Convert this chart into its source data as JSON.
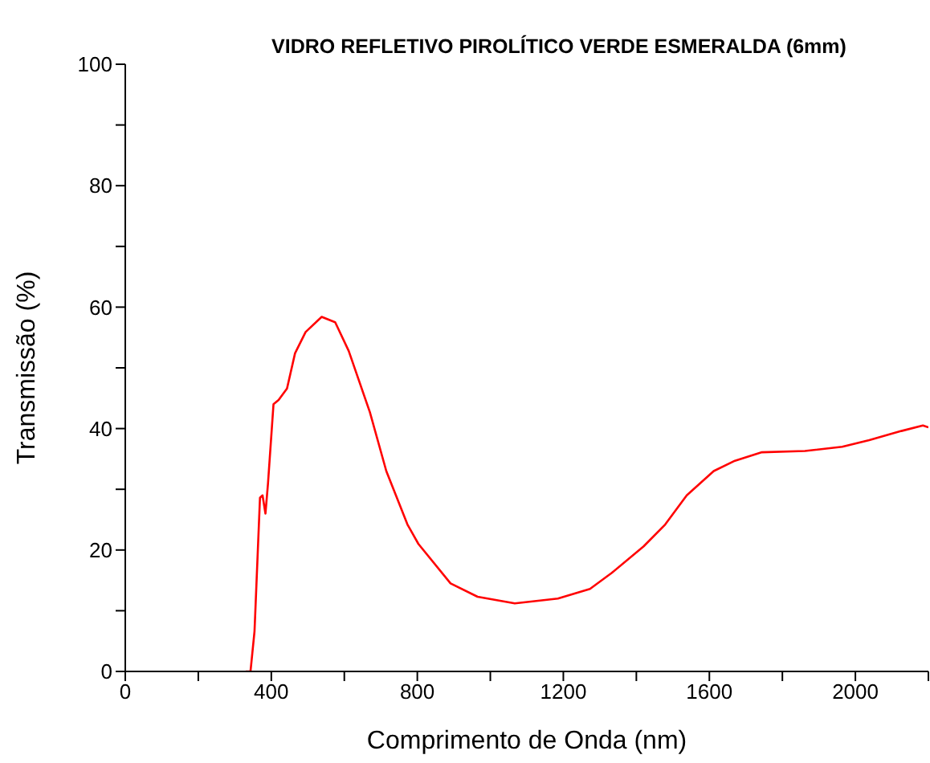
{
  "chart_data": {
    "type": "line",
    "title": "VIDRO REFLETIVO PIROLÍTICO VERDE ESMERALDA (6mm)",
    "xlabel": "Comprimento de Onda (nm)",
    "ylabel": "Transmissão (%)",
    "x": [
      330,
      343,
      354,
      369,
      376,
      384,
      391,
      406,
      420,
      443,
      465,
      494,
      538,
      575,
      612,
      670,
      715,
      773,
      803,
      891,
      965,
      1067,
      1185,
      1273,
      1332,
      1420,
      1479,
      1538,
      1612,
      1670,
      1744,
      1862,
      1964,
      2038,
      2126,
      2185,
      2200
    ],
    "series": [
      {
        "color": "#ff0000",
        "values": [
          0,
          0,
          6.6,
          28.6,
          29,
          26,
          31,
          44,
          44.7,
          46.6,
          52.4,
          55.9,
          58.4,
          57.5,
          52.8,
          42.7,
          33,
          24.2,
          21,
          14.5,
          12.3,
          11.2,
          12,
          13.6,
          16.2,
          20.6,
          24.2,
          29,
          33,
          34.7,
          36.1,
          36.3,
          37,
          38.1,
          39.6,
          40.5,
          40.2
        ]
      }
    ],
    "xlim": [
      0,
      2200
    ],
    "xticks": [
      0,
      {
        "value": 200,
        "label": null
      },
      400,
      {
        "value": 600,
        "label": null
      },
      800,
      {
        "value": 1000,
        "label": null
      },
      1200,
      {
        "value": 1400,
        "label": null
      },
      1600,
      {
        "value": 1800,
        "label": null
      },
      2000,
      {
        "value": 2200,
        "label": null
      }
    ],
    "ylim": [
      0,
      100
    ],
    "yticks": [
      0,
      {
        "value": 10,
        "label": null
      },
      20,
      {
        "value": 30,
        "label": null
      },
      40,
      {
        "value": 50,
        "label": null
      },
      60,
      {
        "value": 70,
        "label": null
      },
      80,
      {
        "value": 90,
        "label": null
      },
      100
    ],
    "grid": false,
    "legend": false,
    "marker": "none",
    "line_style": "solid"
  }
}
